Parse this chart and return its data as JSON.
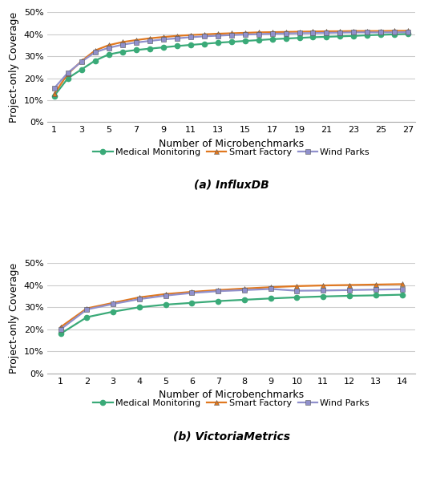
{
  "influx": {
    "x": [
      1,
      2,
      3,
      4,
      5,
      6,
      7,
      8,
      9,
      10,
      11,
      12,
      13,
      14,
      15,
      16,
      17,
      18,
      19,
      20,
      21,
      22,
      23,
      24,
      25,
      26,
      27
    ],
    "medical_monitoring": [
      0.12,
      0.2,
      0.24,
      0.28,
      0.308,
      0.32,
      0.328,
      0.334,
      0.34,
      0.346,
      0.351,
      0.356,
      0.361,
      0.365,
      0.369,
      0.373,
      0.377,
      0.38,
      0.383,
      0.386,
      0.388,
      0.39,
      0.392,
      0.395,
      0.397,
      0.399,
      0.401
    ],
    "smart_factory": [
      0.13,
      0.22,
      0.278,
      0.326,
      0.35,
      0.364,
      0.373,
      0.381,
      0.387,
      0.392,
      0.396,
      0.399,
      0.402,
      0.404,
      0.406,
      0.408,
      0.409,
      0.41,
      0.411,
      0.412,
      0.413,
      0.413,
      0.414,
      0.414,
      0.414,
      0.415,
      0.415
    ],
    "wind_parks": [
      0.155,
      0.225,
      0.275,
      0.318,
      0.338,
      0.352,
      0.362,
      0.369,
      0.376,
      0.381,
      0.386,
      0.39,
      0.393,
      0.396,
      0.398,
      0.4,
      0.402,
      0.403,
      0.404,
      0.405,
      0.406,
      0.407,
      0.408,
      0.408,
      0.408,
      0.408,
      0.409
    ],
    "xlabel": "Number of Microbenchmarks",
    "ylabel": "Project-only Coverage",
    "caption": "(a) InfluxDB",
    "xticks": [
      1,
      3,
      5,
      7,
      9,
      11,
      13,
      15,
      17,
      19,
      21,
      23,
      25,
      27
    ],
    "ylim": [
      0.0,
      0.5
    ],
    "yticks": [
      0.0,
      0.1,
      0.2,
      0.3,
      0.4,
      0.5
    ]
  },
  "victoria": {
    "x": [
      1,
      2,
      3,
      4,
      5,
      6,
      7,
      8,
      9,
      10,
      11,
      12,
      13,
      14
    ],
    "medical_monitoring": [
      0.18,
      0.255,
      0.28,
      0.3,
      0.312,
      0.32,
      0.328,
      0.334,
      0.34,
      0.345,
      0.349,
      0.352,
      0.354,
      0.357
    ],
    "smart_factory": [
      0.21,
      0.295,
      0.32,
      0.345,
      0.36,
      0.37,
      0.378,
      0.385,
      0.391,
      0.396,
      0.399,
      0.401,
      0.403,
      0.405
    ],
    "wind_parks": [
      0.2,
      0.29,
      0.315,
      0.337,
      0.353,
      0.365,
      0.373,
      0.378,
      0.383,
      0.375,
      0.376,
      0.378,
      0.38,
      0.382
    ],
    "xlabel": "Number of Microbenchmarks",
    "ylabel": "Project-only Coverage",
    "caption": "(b) VictoriaMetrics",
    "xticks": [
      1,
      2,
      3,
      4,
      5,
      6,
      7,
      8,
      9,
      10,
      11,
      12,
      13,
      14
    ],
    "ylim": [
      0.0,
      0.5
    ],
    "yticks": [
      0.0,
      0.1,
      0.2,
      0.3,
      0.4,
      0.5
    ]
  },
  "color_medical": "#3aaa78",
  "color_smart": "#e07820",
  "color_wind": "#9090cc",
  "legend_labels": [
    "Medical Monitoring",
    "Smart Factory",
    "Wind Parks"
  ],
  "linewidth": 1.6,
  "markersize": 4.5,
  "bg_color": "#ffffff",
  "grid_color": "#cccccc",
  "font_size_tick": 8,
  "font_size_label": 9,
  "font_size_legend": 8,
  "font_size_caption": 10
}
